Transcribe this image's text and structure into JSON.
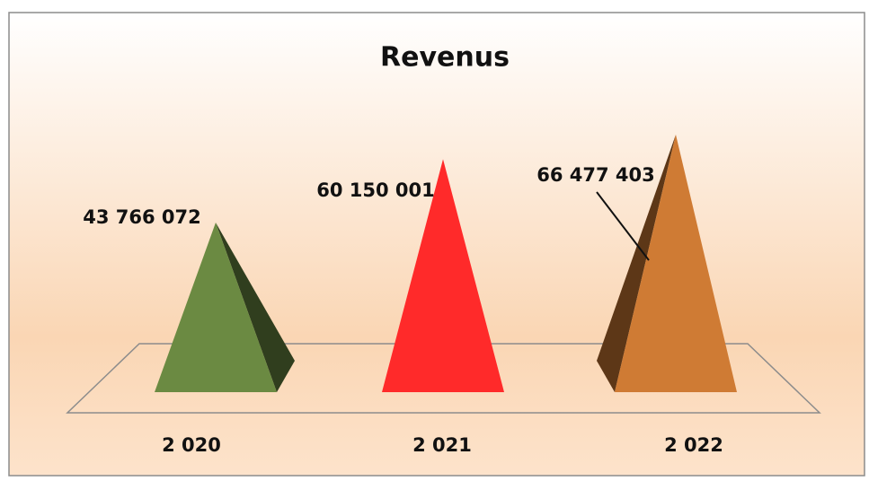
{
  "chart_data": {
    "type": "bar",
    "title": "Revenus",
    "categories": [
      "2 020",
      "2 021",
      "2 022"
    ],
    "values": [
      43766072,
      60150001,
      66477403
    ],
    "value_labels": [
      "43 766 072",
      "60 150 001",
      "66 477 403"
    ],
    "colors": [
      "#6b8a42",
      "#ff2a2a",
      "#cf7b34"
    ]
  }
}
